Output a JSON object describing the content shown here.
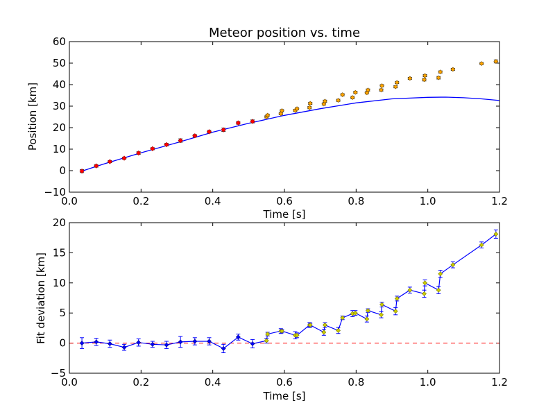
{
  "chart_data": [
    {
      "type": "scatter",
      "title": "Meteor position vs. time",
      "xlabel": "Time [s]",
      "ylabel": "Position [km]",
      "xlim": [
        0.0,
        1.2
      ],
      "ylim": [
        -10,
        60
      ],
      "xticks": [
        "0.0",
        "0.2",
        "0.4",
        "0.6",
        "0.8",
        "1.0",
        "1.2"
      ],
      "yticks": [
        "−10",
        "0",
        "10",
        "20",
        "30",
        "40",
        "50",
        "60"
      ],
      "grid": false,
      "colors": {
        "fit_points": "#ff0000",
        "extra_points": "#ffa500",
        "model": "#0000ff"
      },
      "series": [
        {
          "role": "fit_points",
          "x": [
            0.035,
            0.075,
            0.113,
            0.153,
            0.193,
            0.232,
            0.271,
            0.31,
            0.35,
            0.39,
            0.43,
            0.471,
            0.511
          ],
          "y": [
            -0.2,
            2.2,
            4.2,
            5.8,
            8.2,
            10.2,
            12.1,
            14.0,
            16.2,
            18.1,
            19.0,
            22.2,
            22.9
          ],
          "err": [
            0.7,
            0.6,
            0.5,
            0.5,
            0.6,
            0.5,
            0.6,
            0.8,
            0.6,
            0.6,
            0.8,
            0.6,
            0.7
          ]
        },
        {
          "role": "extra_points",
          "x": [
            0.55,
            0.59,
            0.63,
            0.67,
            0.71,
            0.75,
            0.79,
            0.83,
            0.87,
            0.91,
            0.95,
            0.99,
            1.03,
            1.07,
            1.15,
            1.19,
            0.553,
            0.593,
            0.635,
            0.672,
            0.713,
            0.762,
            0.798,
            0.833,
            0.872,
            0.914,
            0.992,
            1.035
          ],
          "y": [
            25.0,
            26.5,
            28.0,
            29.3,
            31.0,
            32.7,
            34.0,
            36.2,
            37.5,
            39.0,
            42.9,
            42.3,
            43.2,
            47.1,
            49.8,
            50.8,
            25.8,
            27.9,
            28.8,
            31.3,
            32.3,
            35.3,
            36.4,
            37.5,
            39.5,
            41.0,
            44.2,
            45.9
          ],
          "err": [
            0.5,
            0.5,
            0.5,
            0.5,
            0.5,
            0.5,
            0.6,
            0.5,
            0.5,
            0.5,
            0.5,
            0.6,
            0.6,
            0.5,
            0.5,
            0.7,
            0.5,
            0.5,
            0.5,
            0.5,
            0.5,
            0.5,
            0.5,
            0.5,
            0.5,
            0.5,
            0.5,
            0.5
          ]
        },
        {
          "role": "model",
          "type": "line",
          "x": [
            0.035,
            0.1,
            0.2,
            0.3,
            0.4,
            0.5,
            0.6,
            0.7,
            0.8,
            0.9,
            1.0,
            1.05,
            1.1,
            1.15,
            1.2
          ],
          "y": [
            -0.2,
            3.3,
            8.3,
            13.0,
            17.9,
            22.0,
            25.7,
            28.8,
            31.5,
            33.4,
            34.1,
            34.2,
            33.9,
            33.4,
            32.6
          ]
        }
      ]
    },
    {
      "type": "line",
      "xlabel": "Time [s]",
      "ylabel": "Fit deviation [km]",
      "xlim": [
        0.0,
        1.2
      ],
      "ylim": [
        -5,
        20
      ],
      "xticks": [
        "0.0",
        "0.2",
        "0.4",
        "0.6",
        "0.8",
        "1.0",
        "1.2"
      ],
      "yticks": [
        "−5",
        "0",
        "5",
        "10",
        "15",
        "20"
      ],
      "grid": false,
      "colors": {
        "line": "#0000ff",
        "fit_markers": "#0000ff",
        "extra_markers": "#cccc00",
        "zero_line": "#ff0000"
      },
      "zero_line": 0,
      "series": [
        {
          "role": "deviation",
          "x": [
            0.035,
            0.075,
            0.113,
            0.153,
            0.193,
            0.232,
            0.271,
            0.31,
            0.35,
            0.39,
            0.43,
            0.471,
            0.511,
            0.55,
            0.59,
            0.63,
            0.67,
            0.71,
            0.75,
            0.79,
            0.83,
            0.87,
            0.91,
            0.95,
            0.99,
            1.03,
            1.07,
            1.15,
            1.19
          ],
          "y": [
            0.0,
            0.2,
            -0.1,
            -0.7,
            0.1,
            -0.2,
            -0.3,
            0.2,
            0.3,
            0.3,
            -0.9,
            1.0,
            -0.1,
            0.4,
            2.0,
            1.3,
            3.0,
            1.8,
            2.1,
            4.9,
            4.0,
            4.7,
            5.3,
            8.8,
            8.2,
            8.8,
            13.0,
            16.3,
            18.1
          ],
          "err": [
            0.9,
            0.6,
            0.6,
            0.5,
            0.6,
            0.5,
            0.6,
            0.9,
            0.6,
            0.6,
            0.7,
            0.5,
            0.7,
            0.4,
            0.4,
            0.6,
            0.4,
            0.5,
            0.5,
            0.5,
            0.5,
            0.5,
            0.6,
            0.5,
            0.6,
            0.6,
            0.5,
            0.5,
            0.7
          ],
          "fit_count": 13
        },
        {
          "role": "deviation_alt",
          "x": [
            0.553,
            0.593,
            0.635,
            0.672,
            0.713,
            0.762,
            0.798,
            0.833,
            0.872,
            0.914,
            0.992,
            1.035
          ],
          "y": [
            1.5,
            2.0,
            1.3,
            3.0,
            3.0,
            4.2,
            5.0,
            5.4,
            6.4,
            7.4,
            10.0,
            11.5
          ],
          "err": [
            0.3,
            0.3,
            0.4,
            0.3,
            0.4,
            0.3,
            0.4,
            0.3,
            0.4,
            0.4,
            0.5,
            0.6
          ]
        }
      ]
    }
  ]
}
